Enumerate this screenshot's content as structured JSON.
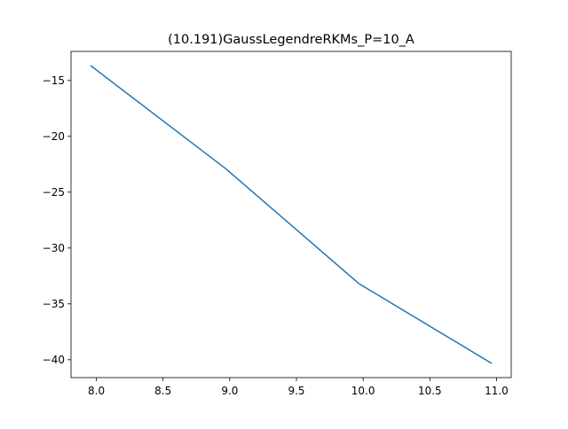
{
  "chart_data": {
    "type": "line",
    "title": "(10.191)GaussLegendreRKMs_P=10_A",
    "xlabel": "",
    "ylabel": "",
    "x": [
      7.96,
      8.97,
      9.97,
      10.96
    ],
    "series": [
      {
        "values": [
          -13.7,
          -22.9,
          -33.2,
          -40.3
        ],
        "color": "#1f77b4"
      }
    ],
    "xlim": [
      7.81,
      11.11
    ],
    "ylim": [
      -41.6,
      -12.4
    ],
    "xticks": [
      8.0,
      8.5,
      9.0,
      9.5,
      10.0,
      10.5,
      11.0
    ],
    "xtick_labels": [
      "8.0",
      "8.5",
      "9.0",
      "9.5",
      "10.0",
      "10.5",
      "11.0"
    ],
    "yticks": [
      -15,
      -20,
      -25,
      -30,
      -35,
      -40
    ],
    "ytick_labels": [
      "−15",
      "−20",
      "−25",
      "−30",
      "−35",
      "−40"
    ],
    "grid": false,
    "legend": "none"
  }
}
